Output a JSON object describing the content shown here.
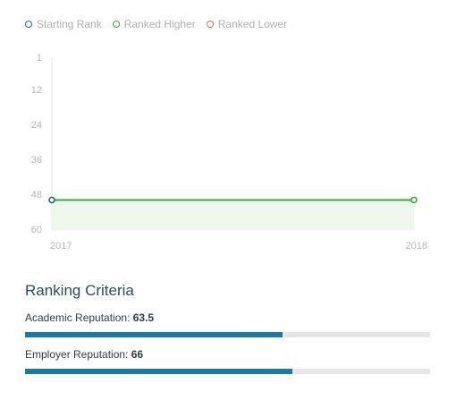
{
  "legend": {
    "items": [
      {
        "label": "Starting Rank",
        "color": "#1b6b8a"
      },
      {
        "label": "Ranked Higher",
        "color": "#3aaa35"
      },
      {
        "label": "Ranked Lower",
        "color": "#e0656b"
      }
    ]
  },
  "chart_data": {
    "type": "line",
    "x": [
      "2017",
      "2018"
    ],
    "y_ticks": [
      1,
      12,
      24,
      36,
      48,
      60
    ],
    "ylim": [
      1,
      60
    ],
    "y_inverted": true,
    "series": [
      {
        "values": [
          50,
          50
        ],
        "color": "#3aaa35",
        "start_marker_color": "#1b6b8a",
        "end_marker_color": "#3aaa35"
      }
    ],
    "area_fill": "#eef8ec",
    "grid": false
  },
  "criteria": {
    "title": "Ranking Criteria",
    "items": [
      {
        "label": "Academic Reputation:",
        "value": "63.5",
        "fraction": 0.635,
        "color": "#1b7aa3"
      },
      {
        "label": "Employer Reputation:",
        "value": "66",
        "fraction": 0.66,
        "color": "#1b7aa3"
      }
    ]
  }
}
